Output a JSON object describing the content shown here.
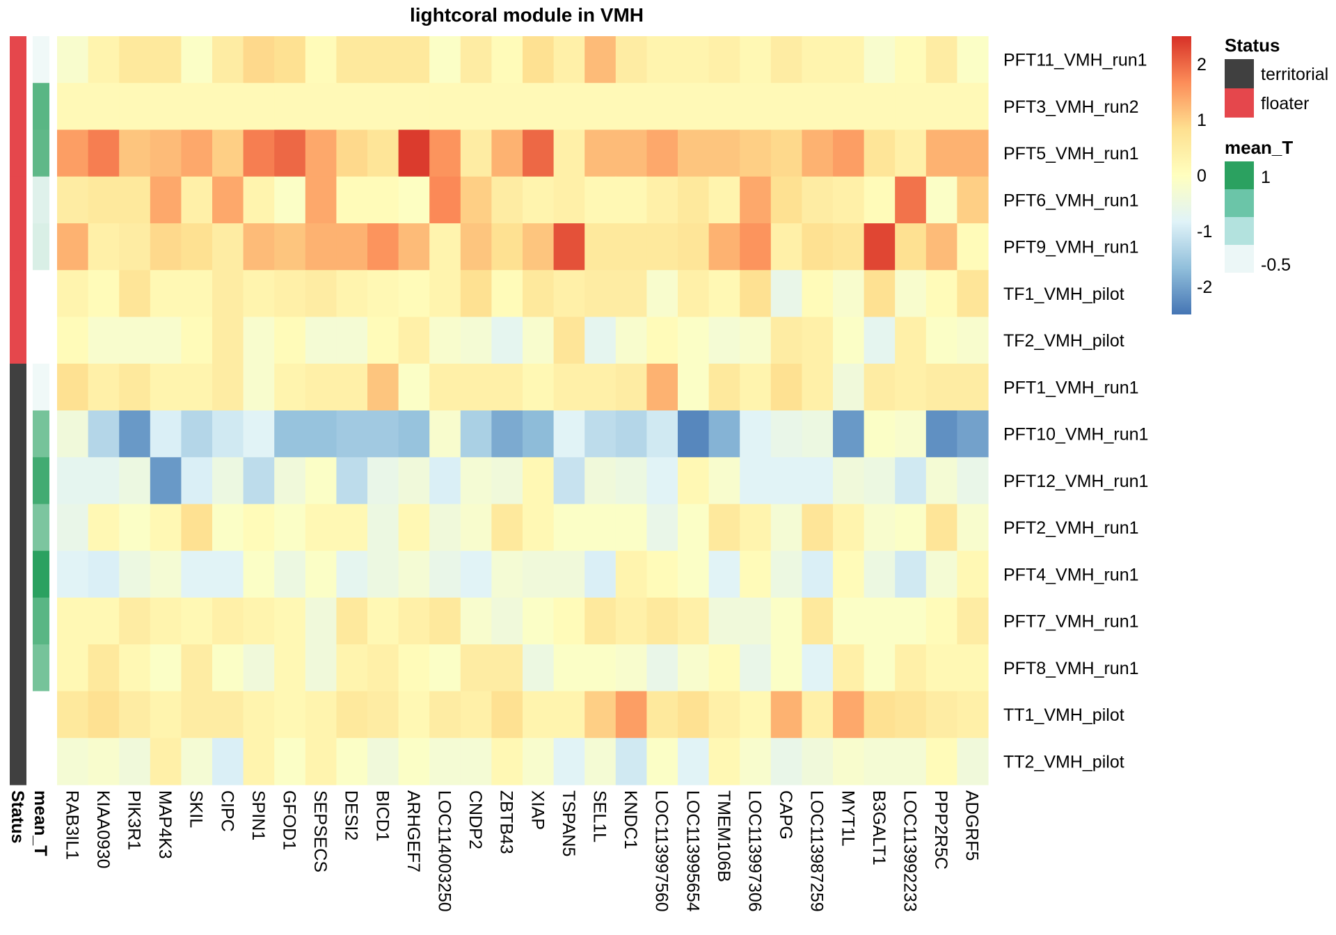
{
  "chart_data": {
    "type": "heatmap",
    "title": "lightcoral module in VMH",
    "columns": [
      "RAB3IL1",
      "KIAA0930",
      "PIK3R1",
      "MAP4K3",
      "SKIL",
      "CIPC",
      "SPIN1",
      "GFOD1",
      "SEPSECS",
      "DESI2",
      "BICD1",
      "ARHGEF7",
      "LOC114003250",
      "CNDP2",
      "ZBTB43",
      "XIAP",
      "TSPAN5",
      "SEL1L",
      "KNDC1",
      "LOC113997560",
      "LOC113995654",
      "TMEM106B",
      "LOC113997306",
      "CAPG",
      "LOC113987259",
      "MYT1L",
      "B3GALT1",
      "LOC113992233",
      "PPP2R5C",
      "ADGRF5"
    ],
    "rows": [
      {
        "name": "PFT11_VMH_run1",
        "status": "floater",
        "mean_T": -0.6,
        "values": [
          -0.2,
          0.3,
          0.6,
          0.6,
          -0.1,
          0.5,
          0.9,
          0.8,
          0.1,
          0.6,
          0.6,
          0.6,
          -0.1,
          0.5,
          0.1,
          0.8,
          0.4,
          1.2,
          0.5,
          0.3,
          0.3,
          0.4,
          0.2,
          0.5,
          0.3,
          0.3,
          -0.2,
          0.1,
          0.5,
          -0.1
        ]
      },
      {
        "name": "PFT3_VMH_run2",
        "status": "floater",
        "mean_T": 0.7,
        "values": [
          0.15,
          0.15,
          0.15,
          0.15,
          0.15,
          0.15,
          0.15,
          0.15,
          0.15,
          0.15,
          0.15,
          0.15,
          0.15,
          0.15,
          0.15,
          0.15,
          0.15,
          0.15,
          0.15,
          0.15,
          0.15,
          0.15,
          0.15,
          0.15,
          0.15,
          0.15,
          0.15,
          0.15,
          0.15,
          0.15
        ]
      },
      {
        "name": "PFT5_VMH_run1",
        "status": "floater",
        "mean_T": 0.65,
        "values": [
          1.5,
          1.8,
          1.1,
          1.2,
          1.4,
          1.0,
          1.8,
          2.0,
          1.4,
          0.9,
          0.7,
          2.4,
          1.6,
          0.5,
          1.3,
          2.0,
          0.4,
          1.2,
          1.2,
          1.4,
          1.1,
          1.1,
          1.0,
          0.9,
          1.3,
          1.5,
          0.7,
          0.4,
          1.3,
          1.3
        ]
      },
      {
        "name": "PFT6_VMH_run1",
        "status": "floater",
        "mean_T": -0.45,
        "values": [
          0.5,
          0.6,
          0.6,
          1.4,
          0.4,
          1.4,
          0.3,
          -0.1,
          1.4,
          0.1,
          0.1,
          -0.05,
          1.7,
          1.0,
          0.5,
          0.3,
          0.4,
          0.2,
          0.2,
          0.4,
          0.6,
          0.3,
          1.4,
          0.8,
          0.5,
          0.4,
          0.1,
          1.9,
          -0.1,
          1.0
        ]
      },
      {
        "name": "PFT9_VMH_run1",
        "status": "floater",
        "mean_T": -0.4,
        "values": [
          1.3,
          0.4,
          0.5,
          0.9,
          0.8,
          0.5,
          1.2,
          1.1,
          1.3,
          1.3,
          1.6,
          1.2,
          0.3,
          1.1,
          0.8,
          1.1,
          2.2,
          0.6,
          0.6,
          0.6,
          0.7,
          1.3,
          1.6,
          0.4,
          0.8,
          0.7,
          2.3,
          0.8,
          1.2,
          0.1
        ]
      },
      {
        "name": "TF1_VMH_pilot",
        "status": "floater",
        "mean_T": null,
        "values": [
          0.3,
          0.1,
          0.7,
          0.2,
          0.2,
          0.5,
          0.3,
          0.4,
          0.5,
          0.3,
          0.2,
          0.1,
          0.3,
          0.8,
          0.1,
          0.6,
          0.4,
          0.5,
          0.5,
          -0.2,
          0.4,
          0.2,
          0.8,
          -0.6,
          0.1,
          -0.2,
          0.8,
          -0.2,
          0.1,
          0.7
        ]
      },
      {
        "name": "TF2_VMH_pilot",
        "status": "floater",
        "mean_T": null,
        "values": [
          0.1,
          -0.2,
          -0.2,
          -0.2,
          0.1,
          0.5,
          -0.2,
          0.1,
          -0.3,
          -0.3,
          0.1,
          0.4,
          -0.2,
          -0.3,
          -0.7,
          -0.2,
          0.7,
          -0.7,
          -0.2,
          0.1,
          -0.1,
          -0.3,
          -0.2,
          0.5,
          0.4,
          -0.1,
          -0.7,
          0.4,
          -0.1,
          -0.2
        ]
      },
      {
        "name": "PFT1_VMH_run1",
        "status": "territorial",
        "mean_T": -0.6,
        "values": [
          0.8,
          0.4,
          0.6,
          0.3,
          0.3,
          0.5,
          -0.2,
          0.3,
          0.4,
          0.4,
          1.1,
          -0.1,
          0.4,
          0.4,
          0.4,
          0.2,
          0.4,
          0.4,
          0.5,
          1.3,
          -0.1,
          0.6,
          0.3,
          0.8,
          0.4,
          -0.4,
          0.5,
          0.4,
          0.5,
          0.5
        ]
      },
      {
        "name": "PFT10_VMH_run1",
        "status": "territorial",
        "mean_T": 0.45,
        "values": [
          -0.4,
          -1.3,
          -2.1,
          -0.9,
          -1.3,
          -1.0,
          -0.8,
          -1.6,
          -1.6,
          -1.5,
          -1.5,
          -1.6,
          -0.2,
          -1.4,
          -1.9,
          -1.7,
          -0.8,
          -1.2,
          -1.3,
          -1.0,
          -2.3,
          -1.8,
          -0.8,
          -0.6,
          -0.5,
          -2.1,
          -0.1,
          -0.2,
          -2.2,
          -2.0
        ]
      },
      {
        "name": "PFT12_VMH_run1",
        "status": "territorial",
        "mean_T": 0.9,
        "values": [
          -0.7,
          -0.7,
          -0.5,
          -2.1,
          -0.9,
          -0.5,
          -1.2,
          -0.4,
          -0.1,
          -1.2,
          -0.6,
          -0.4,
          -0.9,
          -0.3,
          -0.4,
          0.2,
          -1.1,
          -0.4,
          -0.5,
          -0.8,
          0.2,
          -0.2,
          -0.8,
          -0.8,
          -0.8,
          -0.4,
          -0.5,
          -1.0,
          -0.3,
          -0.6
        ]
      },
      {
        "name": "PFT2_VMH_run1",
        "status": "territorial",
        "mean_T": 0.4,
        "values": [
          -0.6,
          0.2,
          -0.1,
          0.2,
          0.8,
          -0.1,
          0.1,
          -0.1,
          0.2,
          0.2,
          -0.5,
          0.2,
          -0.4,
          -0.2,
          0.6,
          0.2,
          -0.1,
          -0.1,
          -0.1,
          -0.6,
          -0.1,
          0.6,
          0.3,
          -0.3,
          0.7,
          0.3,
          -0.2,
          -0.1,
          0.7,
          -0.2
        ]
      },
      {
        "name": "PFT4_VMH_run1",
        "status": "territorial",
        "mean_T": 1.1,
        "values": [
          -0.8,
          -0.9,
          -0.5,
          -0.3,
          -0.8,
          -0.8,
          -0.1,
          -0.5,
          -0.1,
          -0.7,
          -0.5,
          -0.3,
          -0.6,
          -0.8,
          -0.3,
          -0.4,
          -0.4,
          -0.9,
          0.3,
          0.1,
          -0.1,
          -0.8,
          0.1,
          -0.5,
          -0.9,
          0.1,
          -0.5,
          -1.0,
          -0.3,
          0.2
        ]
      },
      {
        "name": "PFT7_VMH_run1",
        "status": "territorial",
        "mean_T": 0.7,
        "values": [
          0.2,
          0.2,
          0.5,
          0.3,
          0.2,
          0.4,
          0.3,
          0.2,
          -0.4,
          0.6,
          0.2,
          0.4,
          0.6,
          -0.2,
          -0.4,
          -0.1,
          0.1,
          0.6,
          0.4,
          0.6,
          0.4,
          -0.4,
          -0.4,
          -0.1,
          0.6,
          -0.1,
          -0.1,
          -0.1,
          0.1,
          0.5
        ]
      },
      {
        "name": "PFT8_VMH_run1",
        "status": "territorial",
        "mean_T": 0.45,
        "values": [
          0.2,
          0.6,
          0.2,
          -0.1,
          0.5,
          -0.1,
          -0.4,
          0.2,
          -0.4,
          0.3,
          0.4,
          0.1,
          -0.1,
          0.5,
          0.5,
          -0.5,
          -0.1,
          -0.1,
          -0.2,
          -0.6,
          -0.2,
          0.1,
          -0.6,
          -0.1,
          -0.8,
          0.4,
          -0.1,
          0.4,
          0.2,
          0.2
        ]
      },
      {
        "name": "TT1_VMH_pilot",
        "status": "territorial",
        "mean_T": null,
        "values": [
          0.6,
          0.8,
          0.5,
          0.3,
          0.5,
          0.5,
          0.3,
          0.2,
          0.3,
          0.6,
          0.5,
          0.2,
          0.5,
          0.4,
          0.8,
          0.3,
          0.3,
          1.0,
          1.5,
          0.6,
          0.8,
          0.4,
          0.2,
          1.3,
          0.4,
          1.4,
          0.8,
          0.7,
          0.5,
          0.4
        ]
      },
      {
        "name": "TT2_VMH_pilot",
        "status": "territorial",
        "mean_T": null,
        "values": [
          -0.3,
          -0.2,
          -0.4,
          0.4,
          -0.3,
          -0.9,
          0.3,
          -0.1,
          0.3,
          -0.1,
          -0.4,
          -0.1,
          -0.3,
          -0.3,
          0.2,
          -0.2,
          -0.8,
          -0.3,
          -1.0,
          -0.1,
          -0.8,
          0.2,
          -0.2,
          -0.6,
          -0.4,
          -0.2,
          -0.3,
          -0.3,
          0.1,
          -0.4
        ]
      }
    ],
    "color_scale": {
      "min": -2.5,
      "max": 2.5,
      "stops": [
        "#4575b4",
        "#91bfdb",
        "#e0f3f8",
        "#ffffbf",
        "#fee090",
        "#fc8d59",
        "#d73027"
      ],
      "ticks": [
        "2",
        "1",
        "0",
        "-1",
        "-2"
      ]
    }
  },
  "annotation_colors": {
    "status": {
      "territorial": "#404040",
      "floater": "#e5474c"
    },
    "mean_T_low": "#f0f9f8",
    "mean_T_high": "#2ba160"
  },
  "annotation_labels": [
    "Status",
    "mean_T"
  ],
  "legend": {
    "status_title": "Status",
    "status_items": [
      {
        "label": "territorial",
        "key": "territorial"
      },
      {
        "label": "floater",
        "key": "floater"
      }
    ],
    "mean_t_title": "mean_T",
    "mean_t_ticks": [
      "1",
      "-0.5"
    ],
    "mean_t_colors": [
      "#2ba160",
      "#6bc5a8",
      "#b3e2de",
      "#ecf7f7"
    ]
  }
}
